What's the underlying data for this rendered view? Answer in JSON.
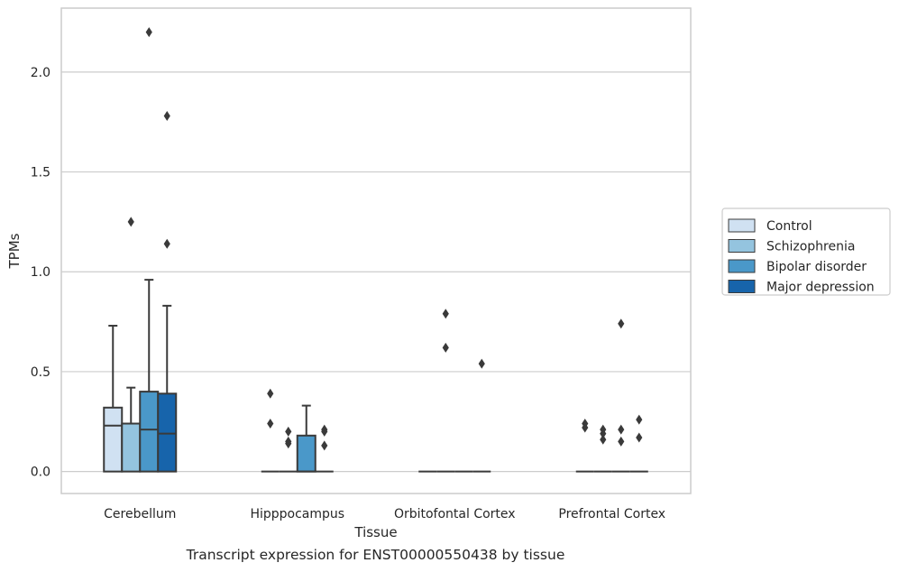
{
  "caption": "Transcript expression for ENST00000550438 by tissue",
  "chart_data": {
    "type": "box",
    "xlabel": "Tissue",
    "ylabel": "TPMs",
    "ylim": [
      -0.11,
      2.32
    ],
    "yticks": [
      0.0,
      0.5,
      1.0,
      1.5,
      2.0
    ],
    "ytick_labels": [
      "0.0",
      "0.5",
      "1.0",
      "1.5",
      "2.0"
    ],
    "grid": "horizontal",
    "legend_position": "right",
    "categories": [
      "Cerebellum",
      "Hipppocampus",
      "Orbitofontal Cortex",
      "Prefrontal Cortex"
    ],
    "series": [
      {
        "name": "Control",
        "color": "#d0e1f2",
        "boxes": [
          {
            "q1": 0.0,
            "median": 0.23,
            "q3": 0.32,
            "whisker_low": 0.0,
            "whisker_high": 0.73,
            "outliers": []
          },
          {
            "q1": 0.0,
            "median": 0.0,
            "q3": 0.0,
            "whisker_low": 0.0,
            "whisker_high": 0.0,
            "outliers": [
              0.39,
              0.24
            ]
          },
          {
            "q1": 0.0,
            "median": 0.0,
            "q3": 0.0,
            "whisker_low": 0.0,
            "whisker_high": 0.0,
            "outliers": []
          },
          {
            "q1": 0.0,
            "median": 0.0,
            "q3": 0.0,
            "whisker_low": 0.0,
            "whisker_high": 0.0,
            "outliers": [
              0.24,
              0.22
            ]
          }
        ]
      },
      {
        "name": "Schizophrenia",
        "color": "#94c4df",
        "boxes": [
          {
            "q1": 0.0,
            "median": 0.24,
            "q3": 0.24,
            "whisker_low": 0.0,
            "whisker_high": 0.42,
            "outliers": [
              1.25
            ]
          },
          {
            "q1": 0.0,
            "median": 0.0,
            "q3": 0.0,
            "whisker_low": 0.0,
            "whisker_high": 0.0,
            "outliers": [
              0.2,
              0.15,
              0.14
            ]
          },
          {
            "q1": 0.0,
            "median": 0.0,
            "q3": 0.0,
            "whisker_low": 0.0,
            "whisker_high": 0.0,
            "outliers": [
              0.79,
              0.62
            ]
          },
          {
            "q1": 0.0,
            "median": 0.0,
            "q3": 0.0,
            "whisker_low": 0.0,
            "whisker_high": 0.0,
            "outliers": [
              0.21,
              0.19,
              0.16
            ]
          }
        ]
      },
      {
        "name": "Bipolar disorder",
        "color": "#4a98c9",
        "boxes": [
          {
            "q1": 0.0,
            "median": 0.21,
            "q3": 0.4,
            "whisker_low": 0.0,
            "whisker_high": 0.96,
            "outliers": [
              2.2
            ]
          },
          {
            "q1": 0.0,
            "median": 0.0,
            "q3": 0.18,
            "whisker_low": 0.0,
            "whisker_high": 0.33,
            "outliers": []
          },
          {
            "q1": 0.0,
            "median": 0.0,
            "q3": 0.0,
            "whisker_low": 0.0,
            "whisker_high": 0.0,
            "outliers": []
          },
          {
            "q1": 0.0,
            "median": 0.0,
            "q3": 0.0,
            "whisker_low": 0.0,
            "whisker_high": 0.0,
            "outliers": [
              0.74,
              0.21,
              0.15
            ]
          }
        ]
      },
      {
        "name": "Major depression",
        "color": "#1764ab",
        "boxes": [
          {
            "q1": 0.0,
            "median": 0.19,
            "q3": 0.39,
            "whisker_low": 0.0,
            "whisker_high": 0.83,
            "outliers": [
              1.78,
              1.14
            ]
          },
          {
            "q1": 0.0,
            "median": 0.0,
            "q3": 0.0,
            "whisker_low": 0.0,
            "whisker_high": 0.0,
            "outliers": [
              0.21,
              0.2,
              0.13
            ]
          },
          {
            "q1": 0.0,
            "median": 0.0,
            "q3": 0.0,
            "whisker_low": 0.0,
            "whisker_high": 0.0,
            "outliers": [
              0.54
            ]
          },
          {
            "q1": 0.0,
            "median": 0.0,
            "q3": 0.0,
            "whisker_low": 0.0,
            "whisker_high": 0.0,
            "outliers": [
              0.26,
              0.17
            ]
          }
        ]
      }
    ]
  }
}
